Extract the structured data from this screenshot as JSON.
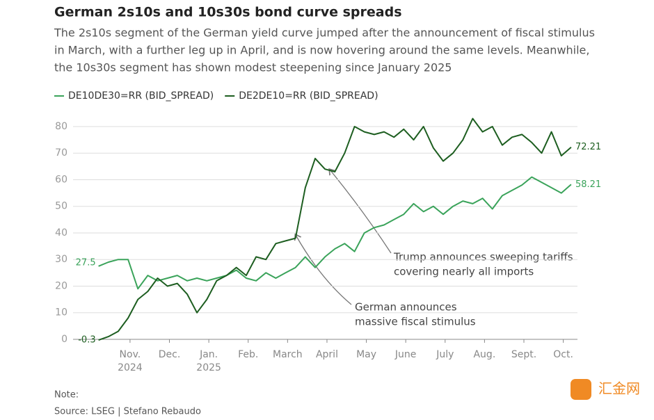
{
  "chart_data": {
    "type": "line",
    "title": "German 2s10s and 10s30s bond curve spreads",
    "subtitle_lines": [
      "The 2s10s segment of the German yield curve jumped after the announcement of fiscal stimulus",
      "in March, with a further leg up in April, and is now hovering around the same levels. Meanwhile,",
      "the 10s30s segment has shown modest steepening since January 2025"
    ],
    "note": "Note:",
    "source": "Source: LSEG | Stefano Rebaudo",
    "watermark": "汇金网",
    "x": [
      -0.8,
      -0.55,
      -0.3,
      -0.05,
      0.2,
      0.45,
      0.7,
      0.95,
      1.2,
      1.45,
      1.7,
      1.95,
      2.2,
      2.45,
      2.7,
      2.95,
      3.2,
      3.45,
      3.7,
      3.95,
      4.2,
      4.45,
      4.7,
      4.95,
      5.2,
      5.45,
      5.7,
      5.95,
      6.2,
      6.45,
      6.7,
      6.95,
      7.2,
      7.45,
      7.7,
      7.95,
      8.2,
      8.45,
      8.7,
      8.95,
      9.2,
      9.45,
      9.7,
      9.95,
      10.2,
      10.45,
      10.7,
      10.95,
      11.2
    ],
    "series": [
      {
        "name": "DE10DE30=RR (BID_SPREAD)",
        "color": "#3aa35a",
        "values": [
          27.5,
          29,
          30,
          30,
          19,
          24,
          22,
          23,
          24,
          22,
          23,
          22,
          23,
          24,
          26,
          23,
          22,
          25,
          23,
          25,
          27,
          31,
          27,
          31,
          34,
          36,
          33,
          40,
          42,
          43,
          45,
          47,
          51,
          48,
          50,
          47,
          50,
          52,
          51,
          53,
          49,
          54,
          56,
          58,
          61,
          59,
          57,
          55,
          58.21
        ]
      },
      {
        "name": "DE2DE10=RR (BID_SPREAD)",
        "color": "#1d5e20",
        "values": [
          -0.3,
          1,
          3,
          8,
          15,
          18,
          23,
          20,
          21,
          17,
          10,
          15,
          22,
          24,
          27,
          24,
          31,
          30,
          36,
          37,
          38,
          57,
          68,
          64,
          63,
          70,
          80,
          78,
          77,
          78,
          76,
          79,
          75,
          80,
          72,
          67,
          70,
          75,
          83,
          78,
          80,
          73,
          76,
          77,
          74,
          70,
          78,
          69,
          72.21
        ]
      }
    ],
    "xlim": [
      -1.8,
      11.36
    ],
    "xticks": [
      {
        "value": 0,
        "label": "Nov. 2024"
      },
      {
        "value": 1,
        "label": "Dec."
      },
      {
        "value": 2,
        "label": "Jan. 2025"
      },
      {
        "value": 3,
        "label": "Feb."
      },
      {
        "value": 4,
        "label": "March"
      },
      {
        "value": 5,
        "label": "April"
      },
      {
        "value": 6,
        "label": "May"
      },
      {
        "value": 7,
        "label": "June"
      },
      {
        "value": 8,
        "label": "July"
      },
      {
        "value": 9,
        "label": "Aug."
      },
      {
        "value": 10,
        "label": "Sept."
      },
      {
        "value": 11,
        "label": "Oct."
      }
    ],
    "ylim": [
      -2,
      86
    ],
    "yticks": [
      0,
      10,
      20,
      30,
      40,
      50,
      60,
      70,
      80
    ],
    "grid": true,
    "annotations": [
      {
        "text_lines": [
          "Trump announces sweeping tariffs",
          "covering nearly all imports"
        ]
      },
      {
        "text_lines": [
          "German announces",
          "massive fiscal stimulus"
        ]
      }
    ]
  }
}
